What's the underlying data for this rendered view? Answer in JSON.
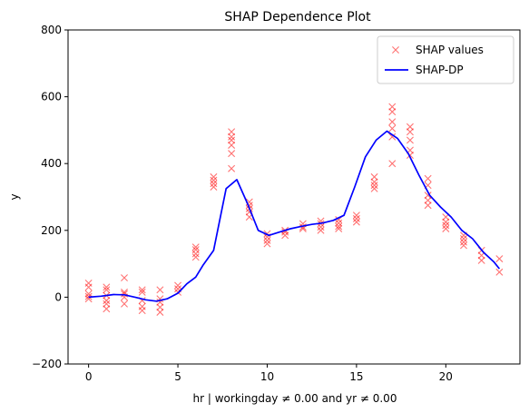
{
  "chart_data": {
    "type": "scatter",
    "title": "SHAP Dependence Plot",
    "xlabel": "hr | workingday ≠ 0.00 and yr ≠ 0.00",
    "ylabel": "y",
    "xlim": [
      -1.15,
      24.15
    ],
    "ylim": [
      -200,
      800
    ],
    "xticks": [
      0,
      5,
      10,
      15,
      20
    ],
    "yticks": [
      -200,
      0,
      200,
      400,
      600,
      800
    ],
    "grid": false,
    "legend": {
      "position": "top-right",
      "entries": [
        "SHAP values",
        "SHAP-DP"
      ]
    },
    "series": [
      {
        "name": "SHAP values",
        "kind": "scatter",
        "marker": "x",
        "color": "#ff0000",
        "alpha": 0.55,
        "points": [
          [
            0,
            42
          ],
          [
            0,
            30
          ],
          [
            0,
            10
          ],
          [
            0,
            2
          ],
          [
            0,
            -5
          ],
          [
            1,
            30
          ],
          [
            1,
            22
          ],
          [
            1,
            5
          ],
          [
            1,
            -10
          ],
          [
            1,
            -20
          ],
          [
            1,
            -35
          ],
          [
            2,
            58
          ],
          [
            2,
            15
          ],
          [
            2,
            10
          ],
          [
            2,
            0
          ],
          [
            2,
            -20
          ],
          [
            3,
            22
          ],
          [
            3,
            15
          ],
          [
            3,
            -10
          ],
          [
            3,
            -28
          ],
          [
            3,
            -40
          ],
          [
            4,
            22
          ],
          [
            4,
            -5
          ],
          [
            4,
            -15
          ],
          [
            4,
            -30
          ],
          [
            4,
            -45
          ],
          [
            5,
            35
          ],
          [
            5,
            25
          ],
          [
            5,
            15
          ],
          [
            6,
            150
          ],
          [
            6,
            142
          ],
          [
            6,
            130
          ],
          [
            6,
            120
          ],
          [
            7,
            360
          ],
          [
            7,
            350
          ],
          [
            7,
            340
          ],
          [
            7,
            330
          ],
          [
            8,
            495
          ],
          [
            8,
            480
          ],
          [
            8,
            470
          ],
          [
            8,
            455
          ],
          [
            8,
            430
          ],
          [
            8,
            385
          ],
          [
            9,
            285
          ],
          [
            9,
            275
          ],
          [
            9,
            265
          ],
          [
            9,
            255
          ],
          [
            9,
            240
          ],
          [
            10,
            190
          ],
          [
            10,
            180
          ],
          [
            10,
            170
          ],
          [
            10,
            160
          ],
          [
            11,
            200
          ],
          [
            11,
            195
          ],
          [
            11,
            185
          ],
          [
            12,
            220
          ],
          [
            12,
            210
          ],
          [
            12,
            205
          ],
          [
            13,
            228
          ],
          [
            13,
            220
          ],
          [
            13,
            210
          ],
          [
            13,
            200
          ],
          [
            14,
            232
          ],
          [
            14,
            222
          ],
          [
            14,
            212
          ],
          [
            14,
            205
          ],
          [
            15,
            245
          ],
          [
            15,
            235
          ],
          [
            15,
            225
          ],
          [
            16,
            360
          ],
          [
            16,
            345
          ],
          [
            16,
            335
          ],
          [
            16,
            325
          ],
          [
            17,
            570
          ],
          [
            17,
            555
          ],
          [
            17,
            525
          ],
          [
            17,
            505
          ],
          [
            17,
            480
          ],
          [
            17,
            400
          ],
          [
            18,
            510
          ],
          [
            18,
            495
          ],
          [
            18,
            470
          ],
          [
            18,
            440
          ],
          [
            18,
            425
          ],
          [
            19,
            355
          ],
          [
            19,
            335
          ],
          [
            19,
            305
          ],
          [
            19,
            290
          ],
          [
            19,
            275
          ],
          [
            20,
            240
          ],
          [
            20,
            225
          ],
          [
            20,
            215
          ],
          [
            20,
            205
          ],
          [
            21,
            185
          ],
          [
            21,
            175
          ],
          [
            21,
            165
          ],
          [
            21,
            155
          ],
          [
            22,
            140
          ],
          [
            22,
            125
          ],
          [
            22,
            110
          ],
          [
            23,
            115
          ],
          [
            23,
            75
          ]
        ]
      },
      {
        "name": "SHAP-DP",
        "kind": "line",
        "color": "#0000ff",
        "x": [
          0,
          0.7,
          1.4,
          2.0,
          2.6,
          3.2,
          3.8,
          4.4,
          5.0,
          5.5,
          6.0,
          6.4,
          7.0,
          7.7,
          8.3,
          8.9,
          9.5,
          10.1,
          10.7,
          11.3,
          11.9,
          12.5,
          13.1,
          13.7,
          14.3,
          14.9,
          15.5,
          16.1,
          16.7,
          17.3,
          17.9,
          18.5,
          19.1,
          19.7,
          20.3,
          20.9,
          21.5,
          22.1,
          22.7,
          23.0
        ],
        "y": [
          0,
          3,
          8,
          7,
          0,
          -8,
          -12,
          -5,
          12,
          40,
          60,
          95,
          140,
          325,
          352,
          280,
          200,
          185,
          195,
          205,
          212,
          218,
          222,
          230,
          245,
          330,
          420,
          470,
          497,
          475,
          430,
          365,
          305,
          270,
          240,
          200,
          175,
          135,
          105,
          85
        ]
      }
    ]
  }
}
